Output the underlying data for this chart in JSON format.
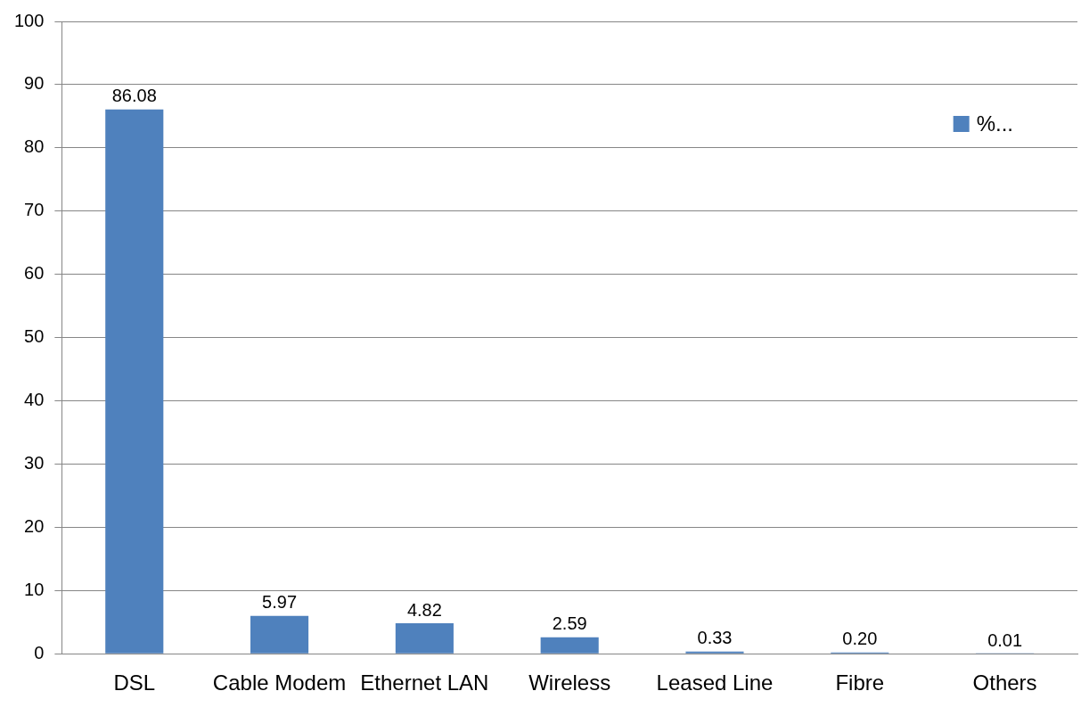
{
  "chart_data": {
    "type": "bar",
    "categories": [
      "DSL",
      "Cable Modem",
      "Ethernet LAN",
      "Wireless",
      "Leased Line",
      "Fibre",
      "Others"
    ],
    "series": [
      {
        "name": "%...",
        "color": "#4f81bd",
        "values": [
          86.08,
          5.97,
          4.82,
          2.59,
          0.33,
          0.2,
          0.01
        ],
        "value_labels": [
          "86.08",
          "5.97",
          "4.82",
          "2.59",
          "0.33",
          "0.20",
          "0.01"
        ]
      }
    ],
    "ylim": [
      0,
      100
    ],
    "yticks": [
      0,
      10,
      20,
      30,
      40,
      50,
      60,
      70,
      80,
      90,
      100
    ],
    "grid": "y",
    "legend": "top right"
  }
}
